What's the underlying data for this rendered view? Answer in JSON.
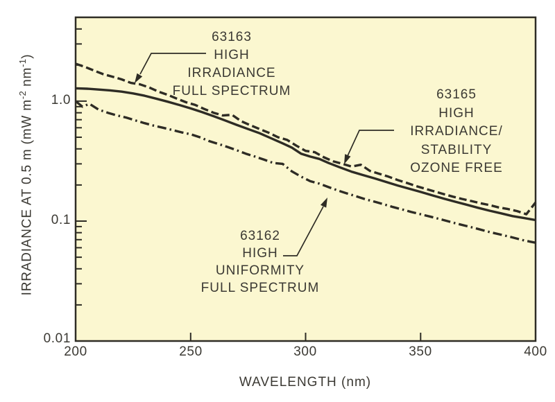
{
  "figure": {
    "background": "#ffffff",
    "plot_background": "#fbf7d0",
    "line_color": "#2e2c25",
    "text_color": "#3b3933"
  },
  "axes": {
    "x_label": "WAVELENGTH (nm)",
    "x_ticks": [
      "200",
      "250",
      "300",
      "350",
      "400"
    ],
    "y_ticks": [
      "1.0",
      "0.1",
      "0.01"
    ],
    "y_label": {
      "pre": "IRRADIANCE AT 0.5 m (mW m",
      "sup_a": "-2",
      "mid": " nm",
      "sup_b": "-1",
      "post": ")"
    }
  },
  "annotations": {
    "a63163": {
      "lines": [
        "63163",
        "HIGH",
        "IRRADIANCE",
        "FULL SPECTRUM"
      ]
    },
    "a63165": {
      "lines": [
        "63165",
        "HIGH",
        "IRRADIANCE/",
        "STABILITY",
        "OZONE FREE"
      ]
    },
    "a63162": {
      "lines": [
        "63162",
        "HIGH",
        "UNIFORMITY",
        "FULL SPECTRUM"
      ]
    }
  },
  "chart_data": {
    "type": "line",
    "title": "",
    "xlabel": "WAVELENGTH (nm)",
    "ylabel": "IRRADIANCE AT 0.5 m (mW m^-2 nm^-1)",
    "x_scale": "linear",
    "y_scale": "log",
    "xlim": [
      200,
      400
    ],
    "ylim": [
      0.01,
      5
    ],
    "x_tick_values": [
      200,
      250,
      300,
      350,
      400
    ],
    "y_tick_values": [
      1.0,
      0.1,
      0.01
    ],
    "grid": false,
    "legend": "annotated with leader arrows",
    "series": [
      {
        "id": "63163",
        "name": "63163 HIGH IRRADIANCE FULL SPECTRUM",
        "style": "dashed",
        "points": [
          [
            200,
            2.05
          ],
          [
            204,
            1.93
          ],
          [
            208,
            1.8
          ],
          [
            212,
            1.68
          ],
          [
            216,
            1.6
          ],
          [
            220,
            1.52
          ],
          [
            224,
            1.42
          ],
          [
            228,
            1.38
          ],
          [
            232,
            1.3
          ],
          [
            236,
            1.2
          ],
          [
            240,
            1.13
          ],
          [
            244,
            1.05
          ],
          [
            248,
            0.98
          ],
          [
            252,
            0.93
          ],
          [
            256,
            0.86
          ],
          [
            260,
            0.8
          ],
          [
            264,
            0.76
          ],
          [
            268,
            0.77
          ],
          [
            272,
            0.68
          ],
          [
            276,
            0.63
          ],
          [
            280,
            0.585
          ],
          [
            284,
            0.545
          ],
          [
            288,
            0.5
          ],
          [
            292,
            0.475
          ],
          [
            296,
            0.425
          ],
          [
            300,
            0.385
          ],
          [
            304,
            0.375
          ],
          [
            308,
            0.34
          ],
          [
            312,
            0.315
          ],
          [
            316,
            0.3
          ],
          [
            320,
            0.285
          ],
          [
            324,
            0.295
          ],
          [
            328,
            0.262
          ],
          [
            332,
            0.248
          ],
          [
            336,
            0.235
          ],
          [
            340,
            0.22
          ],
          [
            344,
            0.208
          ],
          [
            348,
            0.196
          ],
          [
            352,
            0.186
          ],
          [
            356,
            0.177
          ],
          [
            360,
            0.168
          ],
          [
            364,
            0.16
          ],
          [
            368,
            0.153
          ],
          [
            372,
            0.147
          ],
          [
            376,
            0.141
          ],
          [
            380,
            0.136
          ],
          [
            384,
            0.13
          ],
          [
            388,
            0.126
          ],
          [
            392,
            0.121
          ],
          [
            396,
            0.114
          ],
          [
            400,
            0.143
          ]
        ]
      },
      {
        "id": "63165",
        "name": "63165 HIGH IRRADIANCE/STABILITY OZONE FREE",
        "style": "solid",
        "points": [
          [
            200,
            1.28
          ],
          [
            205,
            1.27
          ],
          [
            210,
            1.25
          ],
          [
            215,
            1.23
          ],
          [
            220,
            1.2
          ],
          [
            225,
            1.16
          ],
          [
            230,
            1.11
          ],
          [
            235,
            1.05
          ],
          [
            240,
            0.99
          ],
          [
            245,
            0.93
          ],
          [
            250,
            0.87
          ],
          [
            255,
            0.81
          ],
          [
            260,
            0.75
          ],
          [
            265,
            0.69
          ],
          [
            270,
            0.635
          ],
          [
            275,
            0.585
          ],
          [
            280,
            0.54
          ],
          [
            285,
            0.49
          ],
          [
            290,
            0.445
          ],
          [
            294,
            0.41
          ],
          [
            298,
            0.365
          ],
          [
            302,
            0.345
          ],
          [
            306,
            0.33
          ],
          [
            310,
            0.305
          ],
          [
            315,
            0.28
          ],
          [
            320,
            0.258
          ],
          [
            325,
            0.242
          ],
          [
            330,
            0.227
          ],
          [
            335,
            0.212
          ],
          [
            340,
            0.198
          ],
          [
            345,
            0.186
          ],
          [
            350,
            0.175
          ],
          [
            355,
            0.164
          ],
          [
            360,
            0.154
          ],
          [
            365,
            0.145
          ],
          [
            370,
            0.137
          ],
          [
            375,
            0.129
          ],
          [
            380,
            0.122
          ],
          [
            385,
            0.116
          ],
          [
            390,
            0.11
          ],
          [
            395,
            0.106
          ],
          [
            400,
            0.102
          ]
        ]
      },
      {
        "id": "63162",
        "name": "63162 HIGH UNIFORMITY FULL SPECTRUM",
        "style": "dashdot",
        "points": [
          [
            200,
            1.0
          ],
          [
            203,
            0.9
          ],
          [
            206,
            0.95
          ],
          [
            210,
            0.85
          ],
          [
            214,
            0.8
          ],
          [
            218,
            0.76
          ],
          [
            222,
            0.73
          ],
          [
            226,
            0.69
          ],
          [
            230,
            0.655
          ],
          [
            234,
            0.625
          ],
          [
            238,
            0.6
          ],
          [
            242,
            0.575
          ],
          [
            246,
            0.55
          ],
          [
            250,
            0.53
          ],
          [
            254,
            0.5
          ],
          [
            258,
            0.465
          ],
          [
            262,
            0.44
          ],
          [
            266,
            0.415
          ],
          [
            270,
            0.39
          ],
          [
            274,
            0.365
          ],
          [
            278,
            0.345
          ],
          [
            282,
            0.325
          ],
          [
            286,
            0.305
          ],
          [
            290,
            0.3
          ],
          [
            294,
            0.26
          ],
          [
            298,
            0.235
          ],
          [
            302,
            0.215
          ],
          [
            306,
            0.205
          ],
          [
            310,
            0.192
          ],
          [
            314,
            0.18
          ],
          [
            318,
            0.17
          ],
          [
            322,
            0.161
          ],
          [
            326,
            0.152
          ],
          [
            330,
            0.145
          ],
          [
            334,
            0.138
          ],
          [
            338,
            0.131
          ],
          [
            342,
            0.125
          ],
          [
            346,
            0.119
          ],
          [
            350,
            0.114
          ],
          [
            355,
            0.108
          ],
          [
            360,
            0.102
          ],
          [
            365,
            0.096
          ],
          [
            370,
            0.091
          ],
          [
            375,
            0.086
          ],
          [
            380,
            0.081
          ],
          [
            385,
            0.077
          ],
          [
            390,
            0.073
          ],
          [
            395,
            0.069
          ],
          [
            400,
            0.066
          ]
        ]
      }
    ]
  }
}
